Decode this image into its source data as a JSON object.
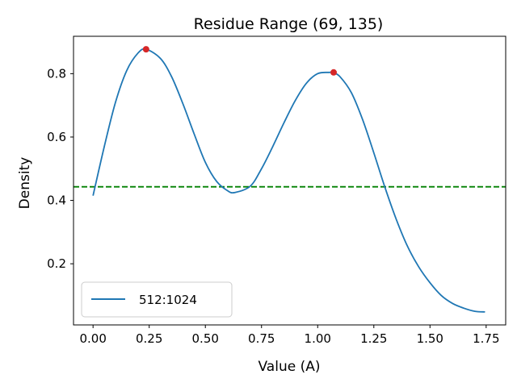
{
  "chart_data": {
    "type": "line",
    "title": "Residue Range (69, 135)",
    "xlabel": "Value (A)",
    "ylabel": "Density",
    "xlim": [
      -0.087,
      1.837
    ],
    "ylim": [
      0.007,
      0.918
    ],
    "xticks": [
      {
        "value": 0.0,
        "label": "0.00"
      },
      {
        "value": 0.25,
        "label": "0.25"
      },
      {
        "value": 0.5,
        "label": "0.50"
      },
      {
        "value": 0.75,
        "label": "0.75"
      },
      {
        "value": 1.0,
        "label": "1.00"
      },
      {
        "value": 1.25,
        "label": "1.25"
      },
      {
        "value": 1.5,
        "label": "1.50"
      },
      {
        "value": 1.75,
        "label": "1.75"
      }
    ],
    "yticks": [
      {
        "value": 0.2,
        "label": "0.2"
      },
      {
        "value": 0.4,
        "label": "0.4"
      },
      {
        "value": 0.6,
        "label": "0.6"
      },
      {
        "value": 0.8,
        "label": "0.8"
      }
    ],
    "grid": false,
    "legend_position": "lower-left",
    "series": [
      {
        "name": "512:1024",
        "color": "#1f77b4",
        "x": [
          0.0,
          0.05,
          0.1,
          0.15,
          0.2,
          0.236,
          0.3,
          0.35,
          0.4,
          0.45,
          0.5,
          0.55,
          0.6,
          0.632,
          0.7,
          0.75,
          0.8,
          0.85,
          0.9,
          0.95,
          1.0,
          1.05,
          1.071,
          1.1,
          1.15,
          1.2,
          1.25,
          1.3,
          1.35,
          1.4,
          1.45,
          1.5,
          1.55,
          1.6,
          1.65,
          1.7,
          1.745
        ],
        "y": [
          0.415,
          0.57,
          0.71,
          0.81,
          0.865,
          0.877,
          0.848,
          0.79,
          0.705,
          0.61,
          0.52,
          0.46,
          0.43,
          0.425,
          0.445,
          0.5,
          0.57,
          0.645,
          0.715,
          0.77,
          0.8,
          0.804,
          0.803,
          0.79,
          0.74,
          0.655,
          0.55,
          0.44,
          0.34,
          0.255,
          0.19,
          0.14,
          0.1,
          0.075,
          0.06,
          0.05,
          0.048
        ]
      }
    ],
    "peaks": {
      "color": "#d62728",
      "points": [
        {
          "x": 0.236,
          "y": 0.877
        },
        {
          "x": 1.071,
          "y": 0.804
        }
      ]
    },
    "threshold": {
      "y": 0.443,
      "color": "#008000",
      "style": "dashed"
    }
  }
}
